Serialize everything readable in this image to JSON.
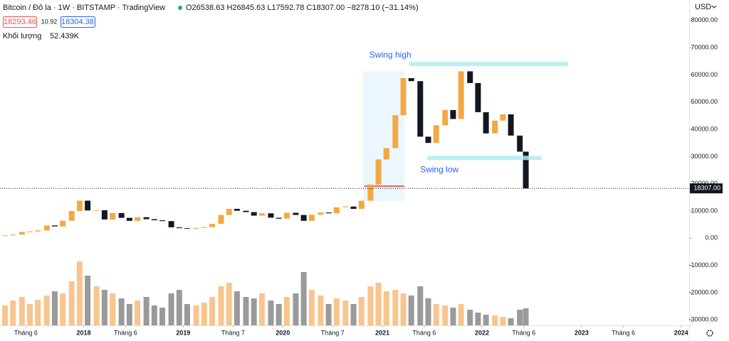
{
  "chart_data": {
    "type": "candlestick",
    "header": {
      "symbol": "Bitcoin / Đô la · 1W · BITSTAMP · TradingView",
      "ohlc": "O26538.63 H26845.63 L17592.78 C18307.00 −8278.10 (−31.14%)",
      "bid": "18293.46",
      "spread": "10.92",
      "ask": "18304.38",
      "volume_label": "Khối lượng",
      "volume_value": "52.439K",
      "currency": "USD"
    },
    "x": [
      2017.21,
      2017.29,
      2017.38,
      2017.46,
      2017.54,
      2017.63,
      2017.71,
      2017.79,
      2017.88,
      2017.96,
      2018.04,
      2018.13,
      2018.21,
      2018.29,
      2018.38,
      2018.46,
      2018.54,
      2018.63,
      2018.71,
      2018.79,
      2018.88,
      2018.96,
      2019.04,
      2019.13,
      2019.21,
      2019.29,
      2019.38,
      2019.46,
      2019.54,
      2019.63,
      2019.71,
      2019.79,
      2019.88,
      2019.96,
      2020.04,
      2020.13,
      2020.21,
      2020.29,
      2020.38,
      2020.46,
      2020.54,
      2020.63,
      2020.71,
      2020.79,
      2020.88,
      2020.96,
      2021.04,
      2021.13,
      2021.21,
      2021.29,
      2021.38,
      2021.46,
      2021.54,
      2021.63,
      2021.71,
      2021.79,
      2021.88,
      2021.96,
      2022.04,
      2022.13,
      2022.21,
      2022.29,
      2022.38,
      2022.44
    ],
    "values": [
      1070,
      1350,
      2300,
      2500,
      2870,
      4700,
      4340,
      6450,
      10000,
      13800,
      10200,
      10300,
      6900,
      9250,
      7500,
      6400,
      7730,
      7000,
      6600,
      6300,
      4000,
      3700,
      3450,
      3800,
      4100,
      5300,
      8550,
      10800,
      10100,
      9600,
      8300,
      9150,
      7550,
      7200,
      9350,
      8550,
      6400,
      8650,
      9450,
      9150,
      11350,
      11650,
      10780,
      13800,
      19700,
      28950,
      33100,
      45200,
      58800,
      57700,
      37300,
      35000,
      41500,
      47100,
      43800,
      61300,
      57000,
      46300,
      38500,
      43200,
      45500,
      37700,
      31800,
      18307
    ],
    "volume": [
      28,
      35,
      40,
      30,
      36,
      42,
      48,
      45,
      62,
      90,
      70,
      55,
      50,
      45,
      38,
      30,
      35,
      40,
      28,
      25,
      45,
      50,
      30,
      28,
      32,
      40,
      55,
      60,
      48,
      40,
      38,
      45,
      35,
      30,
      40,
      45,
      75,
      50,
      42,
      30,
      38,
      35,
      30,
      40,
      55,
      60,
      48,
      50,
      45,
      42,
      55,
      38,
      30,
      28,
      25,
      30,
      22,
      18,
      15,
      14,
      12,
      10,
      22,
      24
    ],
    "volume_ylim": [
      0,
      140
    ],
    "up_color": "#f5a742",
    "down_color": "#131722",
    "volume_up_color": "#f8c58e",
    "volume_down_color": "#9a9a9a",
    "xlim": [
      2017.16,
      2024.08
    ],
    "ylim": [
      -32000,
      87500
    ],
    "yticks": [
      {
        "value": 80000,
        "label": "80000.00"
      },
      {
        "value": 70000,
        "label": "70000.00"
      },
      {
        "value": 60000,
        "label": "60000.00"
      },
      {
        "value": 50000,
        "label": "50000.00"
      },
      {
        "value": 40000,
        "label": "40000.00"
      },
      {
        "value": 30000,
        "label": "30000.00"
      },
      {
        "value": 20000,
        "label": "20000.00"
      },
      {
        "value": 10000,
        "label": "10000.00"
      },
      {
        "value": 0,
        "label": "0.00"
      },
      {
        "value": -10000,
        "label": "-10000.00"
      },
      {
        "value": -20000,
        "label": "-20000.00"
      },
      {
        "value": -30000,
        "label": "-30000.00"
      }
    ],
    "xticks": [
      {
        "value": 2017.42,
        "label": "Tháng 6"
      },
      {
        "value": 2018,
        "label": "2018"
      },
      {
        "value": 2018.42,
        "label": "Tháng 6"
      },
      {
        "value": 2019,
        "label": "2019"
      },
      {
        "value": 2019.5,
        "label": "Tháng 7"
      },
      {
        "value": 2020,
        "label": "2020"
      },
      {
        "value": 2020.5,
        "label": "Tháng 7"
      },
      {
        "value": 2021,
        "label": "2021"
      },
      {
        "value": 2021.42,
        "label": "Tháng 6"
      },
      {
        "value": 2022,
        "label": "2022"
      },
      {
        "value": 2022.42,
        "label": "Tháng 6"
      },
      {
        "value": 2023,
        "label": "2023"
      },
      {
        "value": 2023.42,
        "label": "Tháng 6"
      },
      {
        "value": 2024,
        "label": "2024"
      }
    ],
    "last_price": {
      "value": 18307,
      "label": "18307.00"
    },
    "annotations": [
      {
        "text": "Swing high",
        "value": 64000,
        "x": [
          2021.27,
          2022.86
        ]
      },
      {
        "text": "Swing low",
        "value": 29500,
        "x": [
          2021.45,
          2022.6
        ]
      }
    ]
  }
}
